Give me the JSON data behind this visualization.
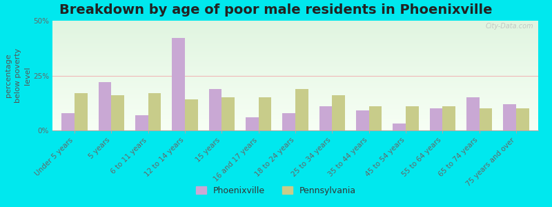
{
  "title": "Breakdown by age of poor male residents in Phoenixville",
  "ylabel": "percentage\nbelow poverty\nlevel",
  "categories": [
    "Under 5 years",
    "5 years",
    "6 to 11 years",
    "12 to 14 years",
    "15 years",
    "16 and 17 years",
    "18 to 24 years",
    "25 to 34 years",
    "35 to 44 years",
    "45 to 54 years",
    "55 to 64 years",
    "65 to 74 years",
    "75 years and over"
  ],
  "phoenixville_values": [
    8,
    22,
    7,
    42,
    19,
    6,
    8,
    11,
    9,
    3,
    10,
    15,
    12
  ],
  "pennsylvania_values": [
    17,
    16,
    17,
    14,
    15,
    15,
    19,
    16,
    11,
    11,
    11,
    10,
    10
  ],
  "phoenixville_color": "#c9a8d4",
  "pennsylvania_color": "#c8cc8a",
  "outer_bg_color": "#00e8ee",
  "ylim": [
    0,
    50
  ],
  "yticks": [
    0,
    25,
    50
  ],
  "ytick_labels": [
    "0%",
    "25%",
    "50%"
  ],
  "bar_width": 0.35,
  "title_fontsize": 14,
  "axis_label_fontsize": 8,
  "tick_fontsize": 7.5,
  "legend_labels": [
    "Phoenixville",
    "Pennsylvania"
  ],
  "watermark": "City-Data.com"
}
